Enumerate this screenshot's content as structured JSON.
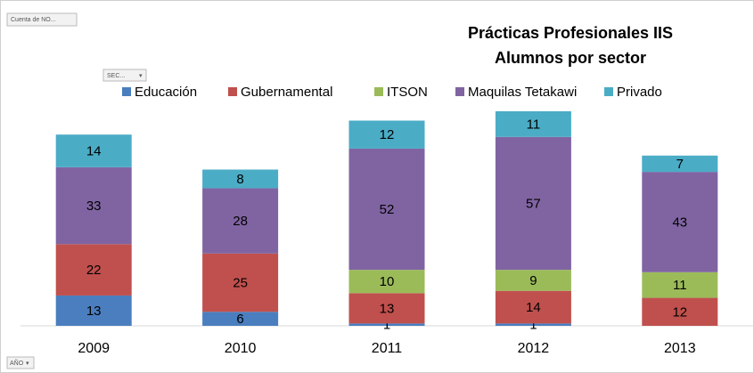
{
  "chart_data": {
    "type": "stacked_bar",
    "title": [
      "Prácticas Profesionales IIS",
      "Alumnos por sector"
    ],
    "categories": [
      "2009",
      "2010",
      "2011",
      "2012",
      "2013"
    ],
    "series": [
      {
        "name": "Educación",
        "color": "#4a7ebf",
        "values": [
          13,
          6,
          1,
          1,
          null
        ]
      },
      {
        "name": "Gubernamental",
        "color": "#c0504d",
        "values": [
          22,
          25,
          13,
          14,
          12
        ]
      },
      {
        "name": "ITSON",
        "color": "#9bbb59",
        "values": [
          null,
          null,
          10,
          9,
          11
        ]
      },
      {
        "name": "Maquilas Tetakawi",
        "color": "#8064a2",
        "values": [
          33,
          28,
          52,
          57,
          43
        ]
      },
      {
        "name": "Privado",
        "color": "#4bacc6",
        "values": [
          14,
          8,
          12,
          11,
          7
        ]
      }
    ],
    "legend": "top",
    "pivot_buttons": {
      "value_field": "Cuenta de NO...",
      "series_field": "SEC...",
      "axis_field": "AÑO"
    }
  }
}
